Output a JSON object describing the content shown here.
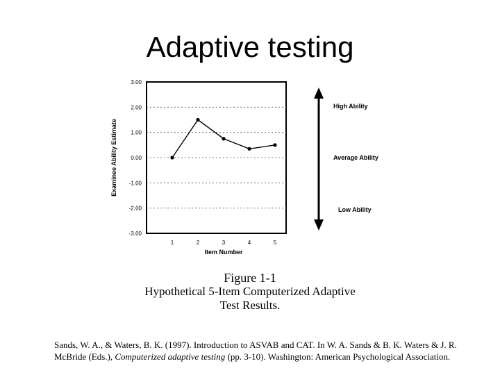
{
  "slide": {
    "title": "Adaptive testing"
  },
  "chart_data": {
    "type": "line",
    "x": [
      1,
      2,
      3,
      4,
      5
    ],
    "values": [
      0.0,
      1.5,
      0.75,
      0.35,
      0.5
    ],
    "xlabel": "Item Number",
    "ylabel": "Examinee Ability Estimate",
    "ylim": [
      -3.0,
      3.0
    ],
    "y_ticks": [
      "3.00",
      "2.00",
      "1.00",
      "0.00",
      "-1.00",
      "-2.00",
      "-3.00"
    ],
    "x_ticks": [
      "1",
      "2",
      "3",
      "4",
      "5"
    ],
    "grid": "dashed horizontal",
    "ability_scale": {
      "high": "High Ability",
      "average": "Average Ability",
      "low": "Low Ability"
    }
  },
  "figure": {
    "label": "Figure 1-1",
    "caption_line1": "Hypothetical 5-Item Computerized Adaptive",
    "caption_line2": "Test Results."
  },
  "citation": {
    "before_title": "Sands, W. A., & Waters, B. K. (1997). Introduction to ASVAB and CAT. In W. A. Sands & B. K. Waters & J. R. McBride (Eds.), ",
    "book_title": "Computerized adaptive testing",
    "after_title": " (pp. 3-10). Washington: American Psychological Association."
  }
}
